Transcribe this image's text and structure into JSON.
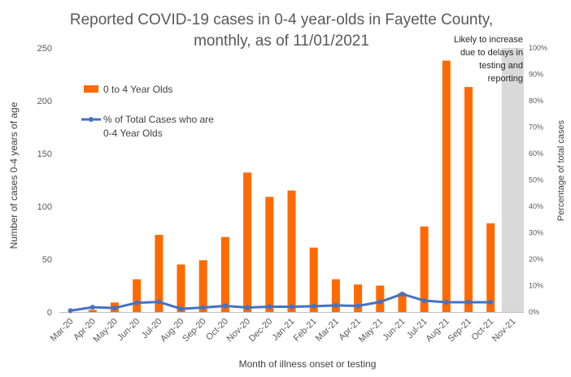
{
  "chart_data": {
    "type": "bar",
    "title_lines": [
      "Reported COVID-19 cases in 0-4 year-olds in Fayette County,",
      "monthly, as of 11/01/2021"
    ],
    "xlabel": "Month of illness onset or testing",
    "ylabel": "Number of cases 0-4 years of age",
    "y2label": "Percentage of total cases",
    "ylim": [
      0,
      250
    ],
    "yticks": [
      "0",
      "50",
      "100",
      "150",
      "200",
      "250"
    ],
    "y2lim": [
      0,
      100
    ],
    "y2ticks": [
      "0%",
      "10%",
      "20%",
      "30%",
      "40%",
      "50%",
      "60%",
      "70%",
      "80%",
      "90%",
      "100%"
    ],
    "categories": [
      "Mar-20",
      "Apr-20",
      "May-20",
      "Jun-20",
      "Jul-20",
      "Aug-20",
      "Sep-20",
      "Oct-20",
      "Nov-20",
      "Dec-20",
      "Jan-21",
      "Feb-21",
      "Mar-21",
      "Apr-21",
      "May-21",
      "Jun-21",
      "Jul-21",
      "Aug-21",
      "Sep-21",
      "Oct-21",
      "Nov-21"
    ],
    "series": [
      {
        "name": "0 to 4 Year Olds",
        "type": "bar",
        "axis": "left",
        "color": "#FF6A00",
        "values": [
          0,
          2,
          9,
          31,
          73,
          45,
          49,
          71,
          132,
          109,
          115,
          61,
          31,
          26,
          25,
          18,
          81,
          238,
          213,
          84,
          null
        ]
      },
      {
        "name": "% of Total Cases who are 0-4 Year Olds",
        "name_lines": [
          "% of Total Cases who are",
          "0-4 Year Olds"
        ],
        "type": "line",
        "axis": "right",
        "color": "#4472C4",
        "values": [
          0.5,
          1.8,
          1.5,
          3.5,
          3.8,
          1.2,
          1.7,
          2.3,
          1.7,
          2.0,
          2.0,
          2.2,
          2.5,
          2.3,
          3.8,
          6.8,
          4.3,
          3.7,
          3.7,
          3.7,
          null
        ]
      }
    ],
    "shaded_months": [
      "Nov-21"
    ],
    "shade_color": "#D9D9D9",
    "annotation_lines": [
      "Likely to increase",
      "due to delays in",
      "testing and",
      "reporting"
    ],
    "gridlines": false,
    "legend_position": "upper-left inside plot"
  }
}
